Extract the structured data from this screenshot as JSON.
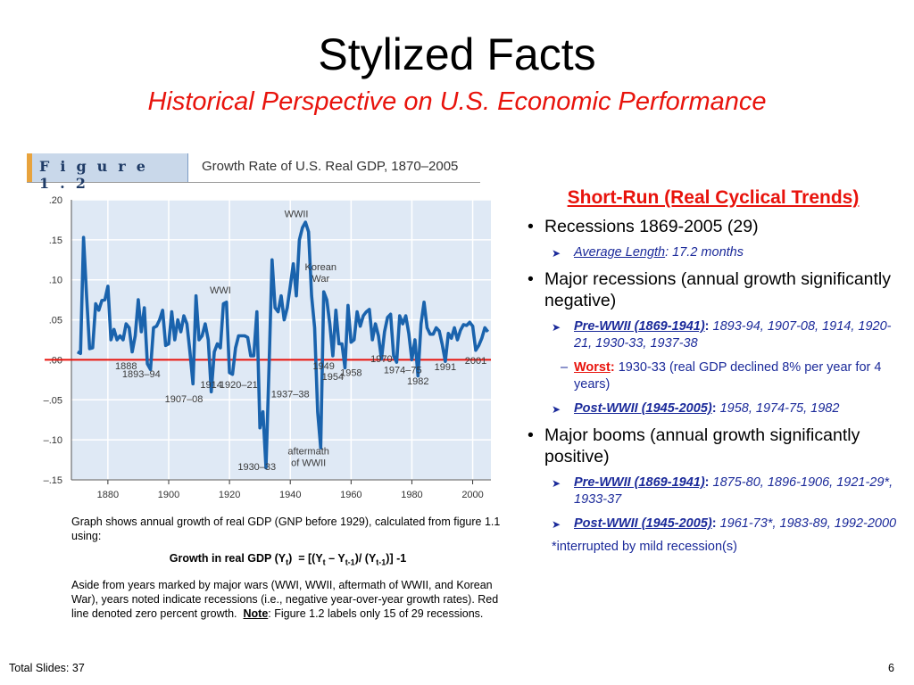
{
  "slide": {
    "title": "Stylized Facts",
    "subtitle": "Historical Perspective on U.S. Economic Performance",
    "total_slides": "Total Slides: 37",
    "page_number": "6"
  },
  "figure": {
    "label": "Figure 1.2",
    "title": "Growth Rate of U.S. Real GDP, 1870–2005"
  },
  "chart_data": {
    "type": "line",
    "title": "Growth Rate of U.S. Real GDP, 1870–2005",
    "xlim": [
      1868,
      2006
    ],
    "ylim": [
      -0.15,
      0.2
    ],
    "xticks": [
      1880,
      1900,
      1920,
      1940,
      1960,
      1980,
      2000
    ],
    "yticks": [
      0.2,
      0.15,
      0.1,
      0.05,
      0.0,
      -0.05,
      -0.1,
      -0.15
    ],
    "ytick_labels": [
      ".20",
      ".15",
      ".10",
      ".05",
      ".00",
      "–.05",
      "–.10",
      "–.15"
    ],
    "zero_line": true,
    "series": [
      {
        "color": "#1a63ad",
        "x": [
          1870,
          1871,
          1872,
          1873,
          1874,
          1875,
          1876,
          1877,
          1878,
          1879,
          1880,
          1881,
          1882,
          1883,
          1884,
          1885,
          1886,
          1887,
          1888,
          1889,
          1890,
          1891,
          1892,
          1893,
          1894,
          1895,
          1896,
          1897,
          1898,
          1899,
          1900,
          1901,
          1902,
          1903,
          1904,
          1905,
          1906,
          1907,
          1908,
          1909,
          1910,
          1911,
          1912,
          1913,
          1914,
          1915,
          1916,
          1917,
          1918,
          1919,
          1920,
          1921,
          1922,
          1923,
          1924,
          1925,
          1926,
          1927,
          1928,
          1929,
          1930,
          1931,
          1932,
          1933,
          1934,
          1935,
          1936,
          1937,
          1938,
          1939,
          1940,
          1941,
          1942,
          1943,
          1944,
          1945,
          1946,
          1947,
          1948,
          1949,
          1950,
          1951,
          1952,
          1953,
          1954,
          1955,
          1956,
          1957,
          1958,
          1959,
          1960,
          1961,
          1962,
          1963,
          1964,
          1965,
          1966,
          1967,
          1968,
          1969,
          1970,
          1971,
          1972,
          1973,
          1974,
          1975,
          1976,
          1977,
          1978,
          1979,
          1980,
          1981,
          1982,
          1983,
          1984,
          1985,
          1986,
          1987,
          1988,
          1989,
          1990,
          1991,
          1992,
          1993,
          1994,
          1995,
          1996,
          1997,
          1998,
          1999,
          2000,
          2001,
          2002,
          2003,
          2004,
          2005
        ],
        "y": [
          0.01,
          0.008,
          0.153,
          0.08,
          0.014,
          0.015,
          0.07,
          0.062,
          0.074,
          0.075,
          0.092,
          0.025,
          0.038,
          0.025,
          0.03,
          0.025,
          0.045,
          0.04,
          0.01,
          0.03,
          0.075,
          0.035,
          0.065,
          -0.005,
          -0.012,
          0.04,
          0.042,
          0.05,
          0.062,
          0.018,
          0.02,
          0.06,
          0.025,
          0.05,
          0.035,
          0.055,
          0.045,
          0.01,
          -0.03,
          0.08,
          0.025,
          0.03,
          0.045,
          0.025,
          -0.04,
          0.01,
          0.02,
          0.015,
          0.07,
          0.072,
          -0.016,
          -0.018,
          0.015,
          0.03,
          0.03,
          0.03,
          0.028,
          0.005,
          0.005,
          0.06,
          -0.085,
          -0.065,
          -0.135,
          -0.01,
          0.125,
          0.065,
          0.06,
          0.08,
          0.05,
          0.065,
          0.092,
          0.12,
          0.08,
          0.15,
          0.165,
          0.172,
          0.16,
          0.08,
          0.04,
          -0.065,
          -0.11,
          0.085,
          0.075,
          0.045,
          0.005,
          0.062,
          0.02,
          0.02,
          -0.01,
          0.068,
          0.022,
          0.025,
          0.06,
          0.042,
          0.055,
          0.06,
          0.063,
          0.025,
          0.045,
          0.03,
          0.001,
          0.035,
          0.053,
          0.057,
          0.005,
          -0.003,
          0.055,
          0.045,
          0.055,
          0.033,
          0.0,
          0.025,
          -0.02,
          0.045,
          0.072,
          0.04,
          0.032,
          0.032,
          0.04,
          0.036,
          0.019,
          -0.002,
          0.033,
          0.027,
          0.04,
          0.025,
          0.037,
          0.044,
          0.043,
          0.047,
          0.042,
          0.012,
          0.018,
          0.027,
          0.04,
          0.035
        ]
      }
    ],
    "annotations": [
      {
        "text": "WWII",
        "x": 1942,
        "y": 0.178
      },
      {
        "text": "Korean War",
        "x": 1950,
        "y": 0.112
      },
      {
        "text": "WWI",
        "x": 1917,
        "y": 0.083
      },
      {
        "text": "1888",
        "x": 1886,
        "y": -0.012
      },
      {
        "text": "1893–94",
        "x": 1891,
        "y": -0.022
      },
      {
        "text": "1907–08",
        "x": 1905,
        "y": -0.053
      },
      {
        "text": "1914",
        "x": 1914,
        "y": -0.035
      },
      {
        "text": "1920–21",
        "x": 1923,
        "y": -0.035
      },
      {
        "text": "1937–38",
        "x": 1940,
        "y": -0.047
      },
      {
        "text": "1930–33",
        "x": 1929,
        "y": -0.138
      },
      {
        "text": "aftermath of WWII",
        "x": 1946,
        "y": -0.118
      },
      {
        "text": "1949",
        "x": 1951,
        "y": -0.012
      },
      {
        "text": "1954",
        "x": 1954,
        "y": -0.025
      },
      {
        "text": "1958",
        "x": 1960,
        "y": -0.02
      },
      {
        "text": "1970",
        "x": 1970,
        "y": -0.003
      },
      {
        "text": "1974–75",
        "x": 1977,
        "y": -0.017
      },
      {
        "text": "1982",
        "x": 1982,
        "y": -0.031
      },
      {
        "text": "1991",
        "x": 1991,
        "y": -0.013
      },
      {
        "text": "2001",
        "x": 2001,
        "y": -0.005
      }
    ]
  },
  "caption": {
    "line1": "Graph shows annual growth of real GDP (GNP before 1929), calculated from figure 1.1 using:",
    "line3_pre": "Aside from years marked by major wars (WWI, WWII, aftermath of WWII, and Korean War), years noted indicate recessions (i.e., negative year-over-year growth rates). Red line denoted zero percent growth.",
    "note_label": "Note",
    "note_text": ": Figure 1.2 labels only 15 of 29 recessions."
  },
  "right": {
    "heading": "Short-Run (Real Cyclical Trends)",
    "bullet1": "Recessions 1869-2005 (29)",
    "avg_label": "Average Length",
    "avg_text": ": 17.2 months",
    "bullet2": "Major recessions (annual growth significantly negative)",
    "rec_pre_label": "Pre-WWII (1869-1941)",
    "rec_pre_text": " 1893-94, 1907-08, 1914, 1920-21, 1930-33, 1937-38",
    "worst_label": "Worst",
    "worst_text": " 1930-33 (real GDP declined 8% per year for 4 years)",
    "rec_post_label": "Post-WWII (1945-2005)",
    "rec_post_text": " 1958, 1974-75, 1982",
    "bullet3": "Major booms (annual growth significantly positive)",
    "boom_pre_label": "Pre-WWII (1869-1941)",
    "boom_pre_text": " 1875-80, 1896-1906, 1921-29*, 1933-37",
    "boom_post_label": "Post-WWII (1945-2005)",
    "boom_post_text": "  1961-73*, 1983-89, 1992-2000",
    "footnote": "*interrupted by mild recession(s)"
  }
}
